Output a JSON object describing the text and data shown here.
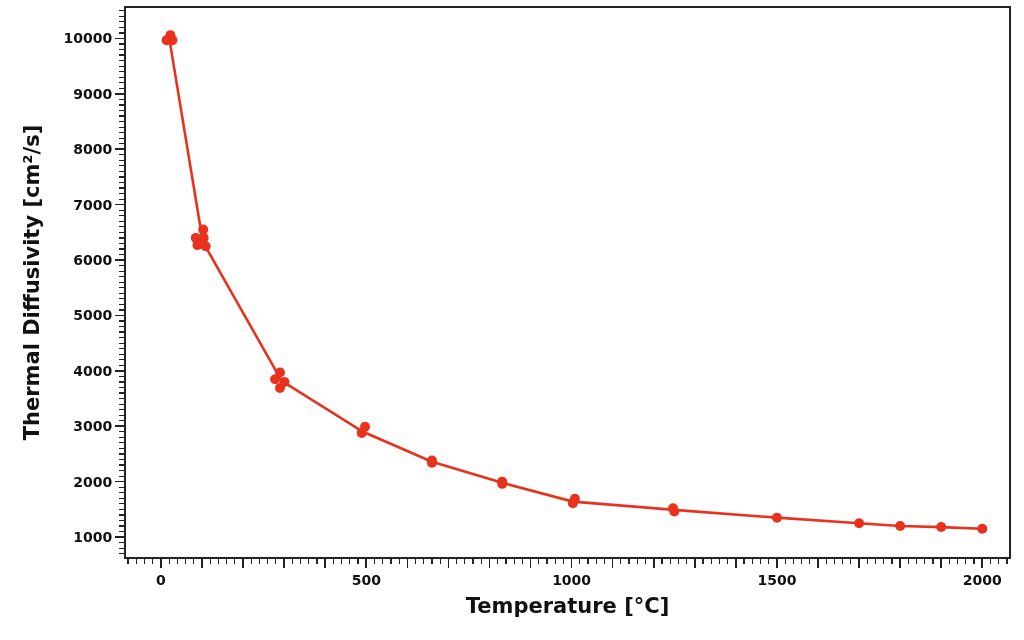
{
  "chart_data": {
    "type": "scatter",
    "xlabel": "Temperature [°C]",
    "ylabel": "Thermal Diffusivity [cm²/s]",
    "series": [
      {
        "type": "line",
        "marker": "none",
        "color": "#e8321e",
        "x": [
          22,
          102,
          294,
          492,
          660,
          831,
          1003,
          1250,
          1500,
          1700,
          1800,
          1900,
          2000
        ],
        "values": [
          9930,
          6330,
          3820,
          2900,
          2360,
          1980,
          1640,
          1490,
          1350,
          1250,
          1200,
          1180,
          1150
        ]
      },
      {
        "marker": "circle",
        "color": "#e8321e",
        "x": [
          14,
          23,
          28,
          85,
          89,
          103,
          104,
          109,
          278,
          290,
          290,
          301,
          489,
          497,
          660,
          660,
          831,
          831,
          1003,
          1008,
          1247,
          1250,
          1500,
          1700,
          1800,
          1900,
          2000
        ],
        "values": [
          9970,
          10060,
          9970,
          6400,
          6270,
          6550,
          6400,
          6250,
          3850,
          3970,
          3690,
          3800,
          2880,
          2990,
          2380,
          2340,
          2000,
          1960,
          1610,
          1690,
          1520,
          1460,
          1350,
          1250,
          1200,
          1180,
          1150
        ]
      }
    ],
    "xlim": [
      -85,
      2065
    ],
    "ylim": [
      640,
      10550
    ],
    "xticks": [
      0,
      {
        "value": 100,
        "label": null
      },
      {
        "value": 200,
        "label": null
      },
      {
        "value": 300,
        "label": null
      },
      {
        "value": 400,
        "label": null
      },
      500,
      {
        "value": 600,
        "label": null
      },
      {
        "value": 700,
        "label": null
      },
      {
        "value": 800,
        "label": null
      },
      {
        "value": 900,
        "label": null
      },
      1000,
      {
        "value": 1100,
        "label": null
      },
      {
        "value": 1200,
        "label": null
      },
      {
        "value": 1300,
        "label": null
      },
      {
        "value": 1400,
        "label": null
      },
      1500,
      {
        "value": 1600,
        "label": null
      },
      {
        "value": 1700,
        "label": null
      },
      {
        "value": 1800,
        "label": null
      },
      {
        "value": 1900,
        "label": null
      },
      2000
    ],
    "yticks": [
      1000,
      2000,
      3000,
      4000,
      5000,
      6000,
      7000,
      8000,
      9000,
      10000
    ],
    "grid": false
  }
}
